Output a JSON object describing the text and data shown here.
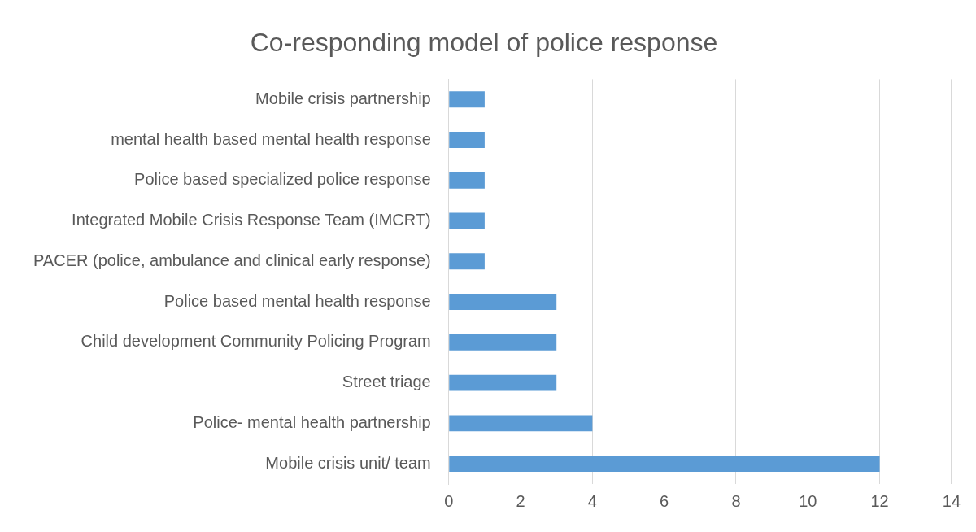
{
  "chart_data": {
    "type": "bar",
    "orientation": "horizontal",
    "title": "Co-responding model of police response",
    "categories": [
      "Mobile crisis partnership",
      "mental health based mental health response",
      "Police based specialized police response",
      "Integrated Mobile Crisis Response Team (IMCRT)",
      "PACER (police, ambulance and clinical early response)",
      "Police based mental health response",
      "Child development Community Policing Program",
      "Street triage",
      "Police- mental health partnership",
      "Mobile crisis unit/ team"
    ],
    "values": [
      1,
      1,
      1,
      1,
      1,
      3,
      3,
      3,
      4,
      12
    ],
    "color": "#5b9bd5",
    "xlim": [
      0,
      14
    ],
    "xticks": [
      0,
      2,
      4,
      6,
      8,
      10,
      12,
      14
    ],
    "grid": "x",
    "legend": false
  }
}
